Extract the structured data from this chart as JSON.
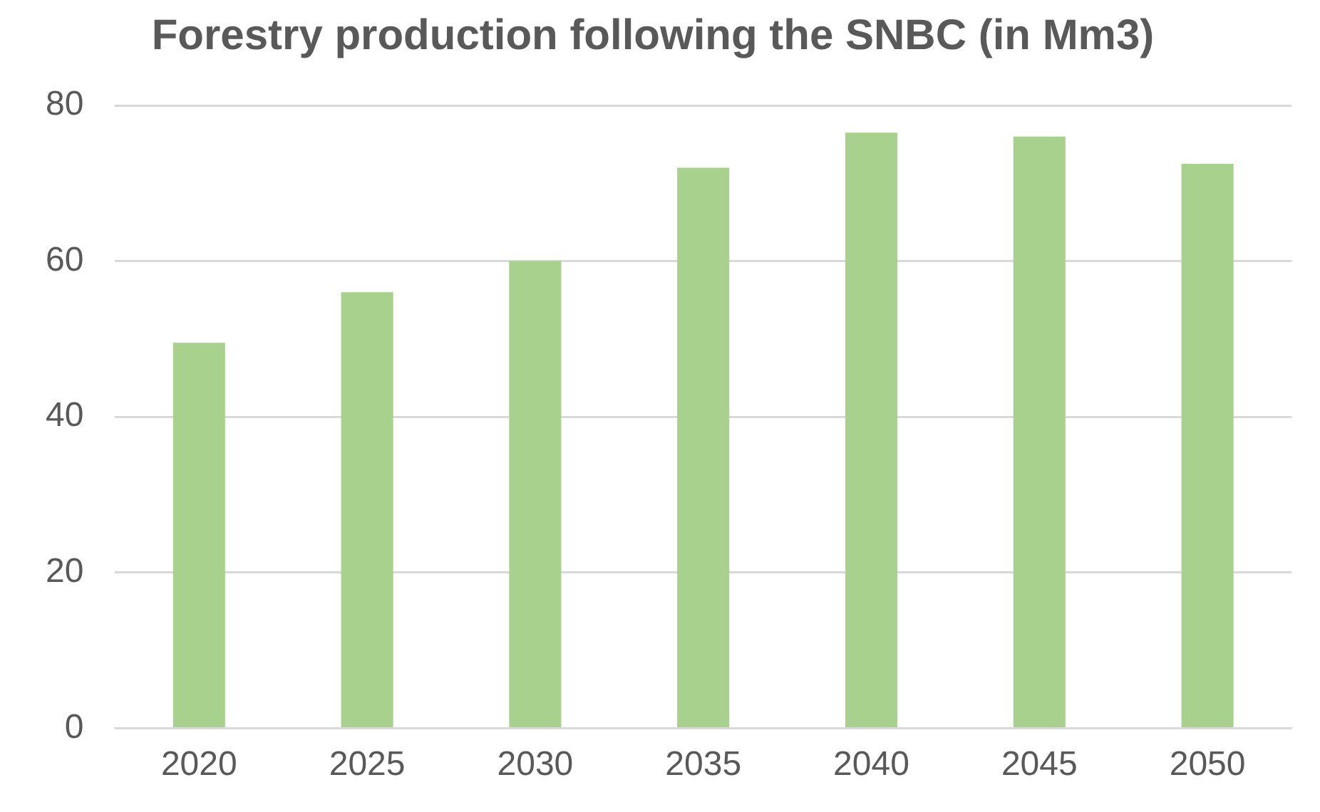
{
  "chart_data": {
    "type": "bar",
    "title": "Forestry production following the SNBC (in Mm3)",
    "categories": [
      "2020",
      "2025",
      "2030",
      "2035",
      "2040",
      "2045",
      "2050"
    ],
    "values": [
      49.5,
      56,
      60,
      72,
      76.5,
      76,
      72.5
    ],
    "color": "#a9d18e",
    "ylim": [
      0,
      80
    ],
    "yticks": [
      0,
      20,
      40,
      60,
      80
    ],
    "grid": "y",
    "legend": false
  }
}
